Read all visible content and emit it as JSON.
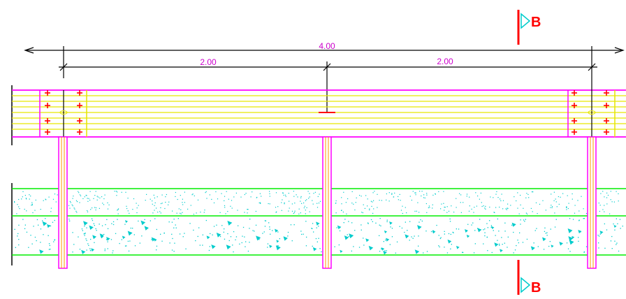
{
  "dimensions": {
    "overall": "4.00",
    "left_span": "2.00",
    "right_span": "2.00"
  },
  "section_marks": {
    "top_label": "B",
    "bottom_label": "B"
  },
  "colors": {
    "dimension": "#000000",
    "dim_text": "#cc00cc",
    "rail_outline": "#ff00ff",
    "rail_boards": "#e6e600",
    "post": "#ff00ff",
    "post_inner": "#ff9900",
    "bolt": "#ff0000",
    "concrete_lines": "#00ee00",
    "concrete_fill": "#00cccc",
    "section_mark": "#ff0000",
    "section_text": "#ff0000"
  }
}
